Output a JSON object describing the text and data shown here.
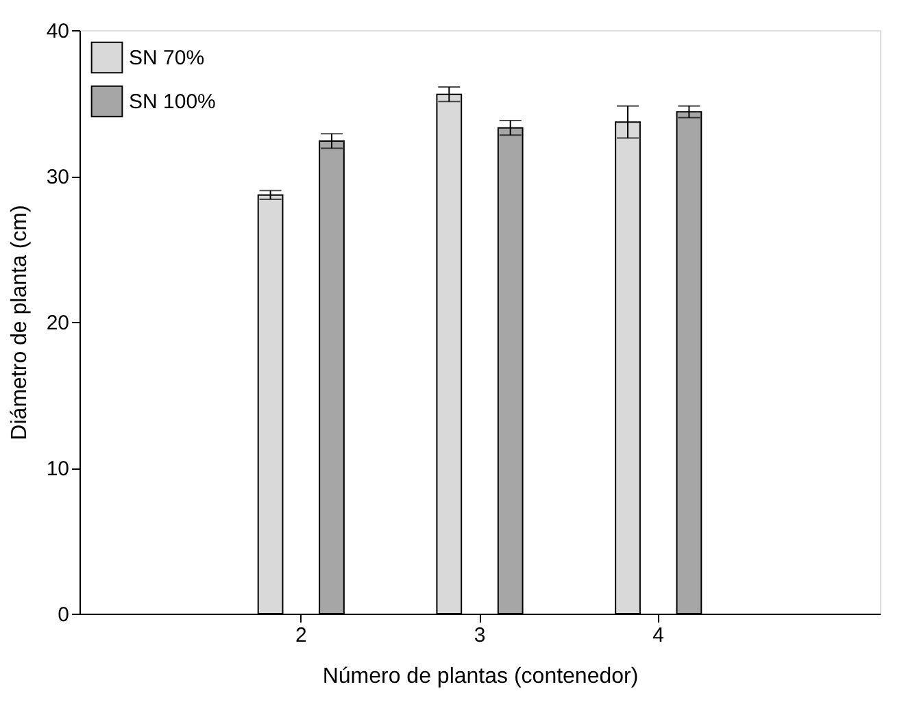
{
  "chart_data": {
    "type": "bar",
    "xlabel": "Número de plantas (contenedor)",
    "ylabel": "Diámetro de planta (cm)",
    "categories": [
      "2",
      "3",
      "4"
    ],
    "series": [
      {
        "name": "SN 70%",
        "color": "#d9d9d9",
        "values": [
          28.7,
          35.6,
          33.7
        ],
        "errors": [
          0.3,
          0.5,
          1.1
        ]
      },
      {
        "name": "SN 100%",
        "color": "#a6a6a6",
        "values": [
          32.4,
          33.3,
          34.4
        ],
        "errors": [
          0.5,
          0.5,
          0.4
        ]
      }
    ],
    "ylim": [
      0,
      40
    ],
    "yticks": [
      0,
      10,
      20,
      30,
      40
    ],
    "grid": false,
    "legend": "top left"
  }
}
